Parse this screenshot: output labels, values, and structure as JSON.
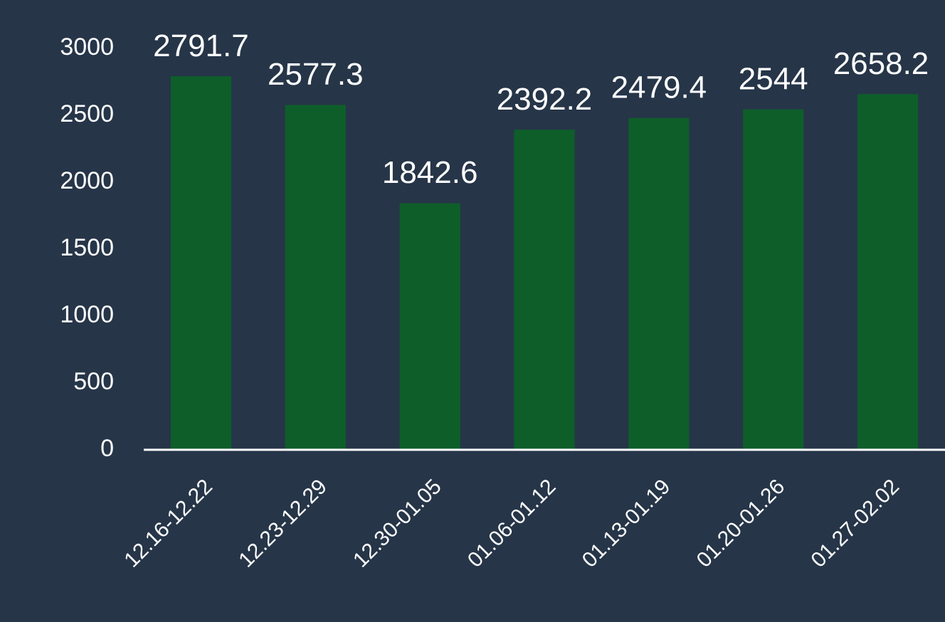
{
  "chart_data": {
    "type": "bar",
    "categories": [
      "12.16-12.22",
      "12.23-12.29",
      "12.30-01.05",
      "01.06-01.12",
      "01.13-01.19",
      "01.20-01.26",
      "01.27-02.02"
    ],
    "values": [
      2791.7,
      2577.3,
      1842.6,
      2392.2,
      2479.4,
      2544,
      2658.2
    ],
    "color": "#0e5e2a",
    "ylim": [
      0,
      3000
    ],
    "yticks": [
      0,
      500,
      1000,
      1500,
      2000,
      2500,
      3000
    ],
    "grid": false
  }
}
